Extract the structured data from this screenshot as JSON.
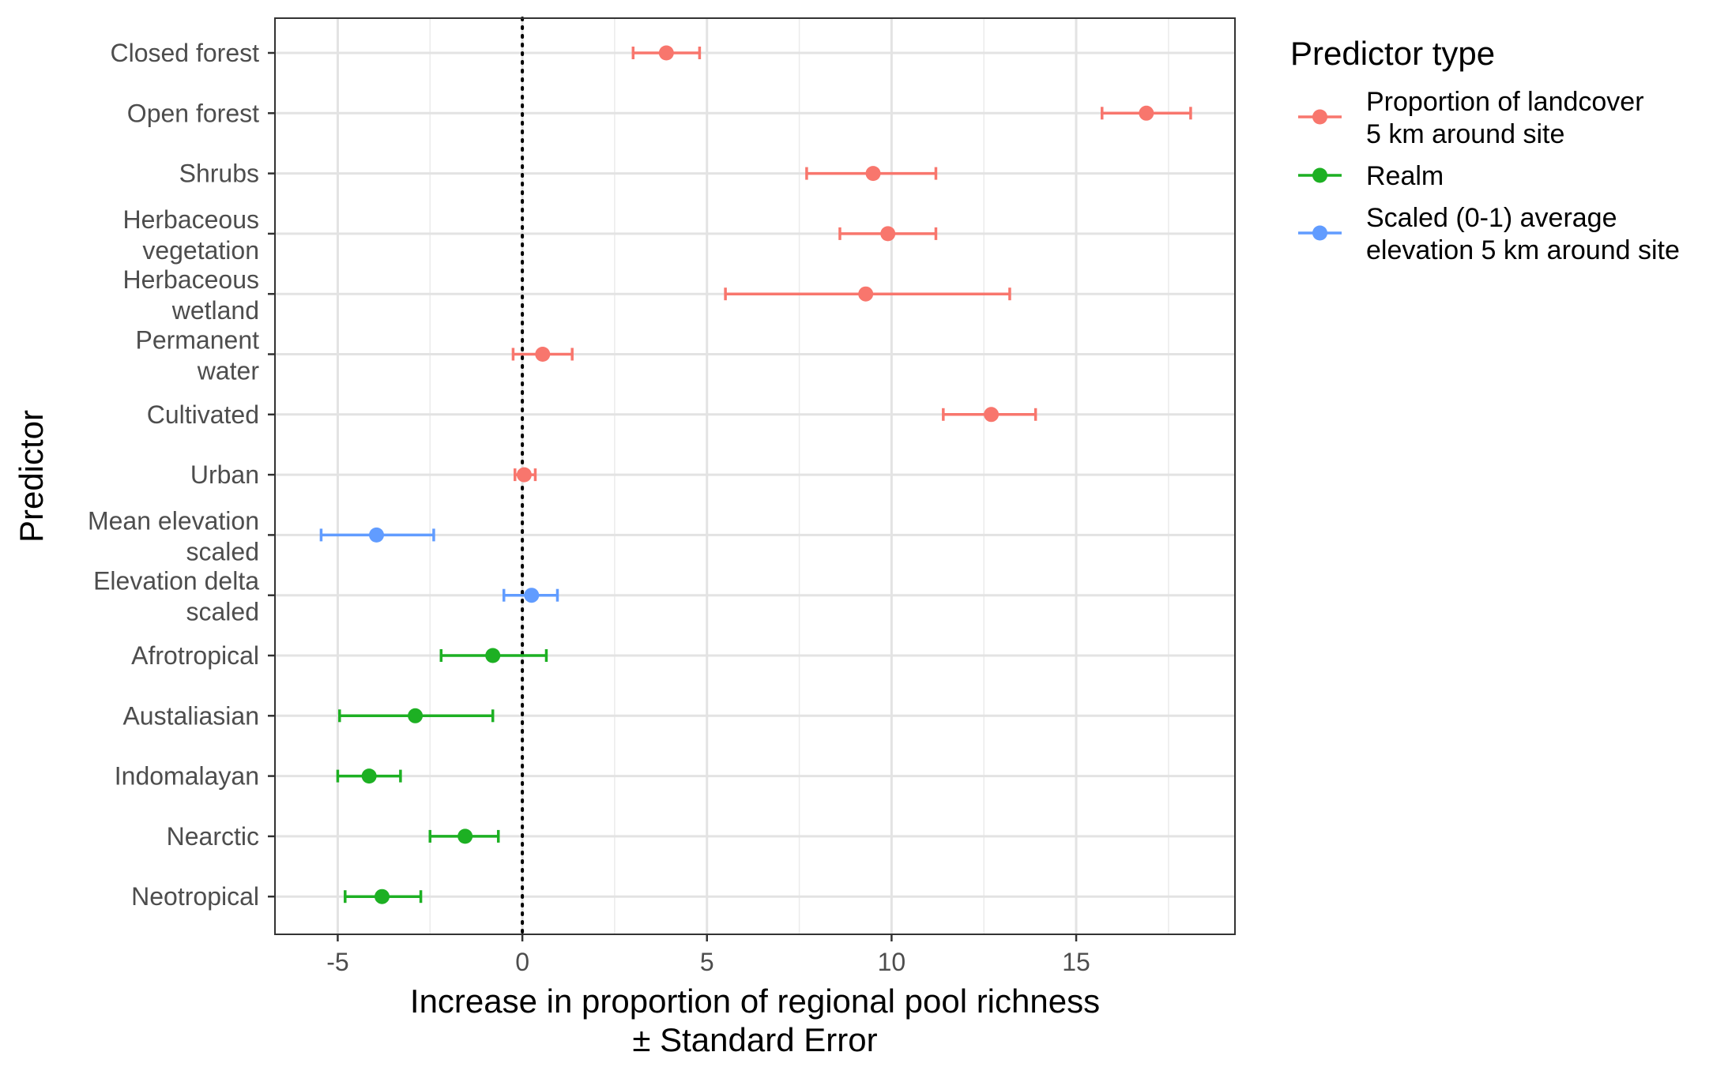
{
  "chart_data": {
    "type": "scatter",
    "subtype": "dot-and-whisker",
    "xlabel_lines": [
      "Increase in proportion of regional pool richness",
      "± Standard Error"
    ],
    "ylabel": "Predictor",
    "xlim": [
      -6.7,
      19.3
    ],
    "x_ticks": [
      -5,
      0,
      5,
      10,
      15
    ],
    "x_tick_labels": [
      "-5",
      "0",
      "5",
      "10",
      "15"
    ],
    "reference_line": {
      "x": 0,
      "style": "dotted",
      "color": "#000000"
    },
    "grid": true,
    "legend": {
      "title": "Predictor type",
      "position": "right",
      "items": [
        {
          "key": "landcover",
          "label_lines": [
            "Proportion of landcover",
            "5 km around site"
          ],
          "color": "#F8766D"
        },
        {
          "key": "realm",
          "label_lines": [
            "Realm"
          ],
          "color": "#1DB023"
        },
        {
          "key": "elevation",
          "label_lines": [
            "Scaled (0-1) average",
            "elevation 5 km around site"
          ],
          "color": "#619CFF"
        }
      ]
    },
    "points": [
      {
        "label_lines": [
          "Closed forest"
        ],
        "type": "landcover",
        "estimate": 3.9,
        "lower": 3.0,
        "upper": 4.8
      },
      {
        "label_lines": [
          "Open forest"
        ],
        "type": "landcover",
        "estimate": 16.9,
        "lower": 15.7,
        "upper": 18.1
      },
      {
        "label_lines": [
          "Shrubs"
        ],
        "type": "landcover",
        "estimate": 9.5,
        "lower": 7.7,
        "upper": 11.2
      },
      {
        "label_lines": [
          "Herbaceous",
          "vegetation"
        ],
        "type": "landcover",
        "estimate": 9.9,
        "lower": 8.6,
        "upper": 11.2
      },
      {
        "label_lines": [
          "Herbaceous",
          "wetland"
        ],
        "type": "landcover",
        "estimate": 9.3,
        "lower": 5.5,
        "upper": 13.2
      },
      {
        "label_lines": [
          "Permanent",
          "water"
        ],
        "type": "landcover",
        "estimate": 0.55,
        "lower": -0.25,
        "upper": 1.35
      },
      {
        "label_lines": [
          "Cultivated"
        ],
        "type": "landcover",
        "estimate": 12.7,
        "lower": 11.4,
        "upper": 13.9
      },
      {
        "label_lines": [
          "Urban"
        ],
        "type": "landcover",
        "estimate": 0.05,
        "lower": -0.2,
        "upper": 0.35
      },
      {
        "label_lines": [
          "Mean elevation",
          "scaled"
        ],
        "type": "elevation",
        "estimate": -3.95,
        "lower": -5.45,
        "upper": -2.4
      },
      {
        "label_lines": [
          "Elevation delta",
          "scaled"
        ],
        "type": "elevation",
        "estimate": 0.25,
        "lower": -0.5,
        "upper": 0.95
      },
      {
        "label_lines": [
          "Afrotropical"
        ],
        "type": "realm",
        "estimate": -0.8,
        "lower": -2.2,
        "upper": 0.65
      },
      {
        "label_lines": [
          "Austaliasian"
        ],
        "type": "realm",
        "estimate": -2.9,
        "lower": -4.95,
        "upper": -0.8
      },
      {
        "label_lines": [
          "Indomalayan"
        ],
        "type": "realm",
        "estimate": -4.15,
        "lower": -5.0,
        "upper": -3.3
      },
      {
        "label_lines": [
          "Nearctic"
        ],
        "type": "realm",
        "estimate": -1.55,
        "lower": -2.5,
        "upper": -0.65
      },
      {
        "label_lines": [
          "Neotropical"
        ],
        "type": "realm",
        "estimate": -3.8,
        "lower": -4.8,
        "upper": -2.75
      }
    ]
  }
}
